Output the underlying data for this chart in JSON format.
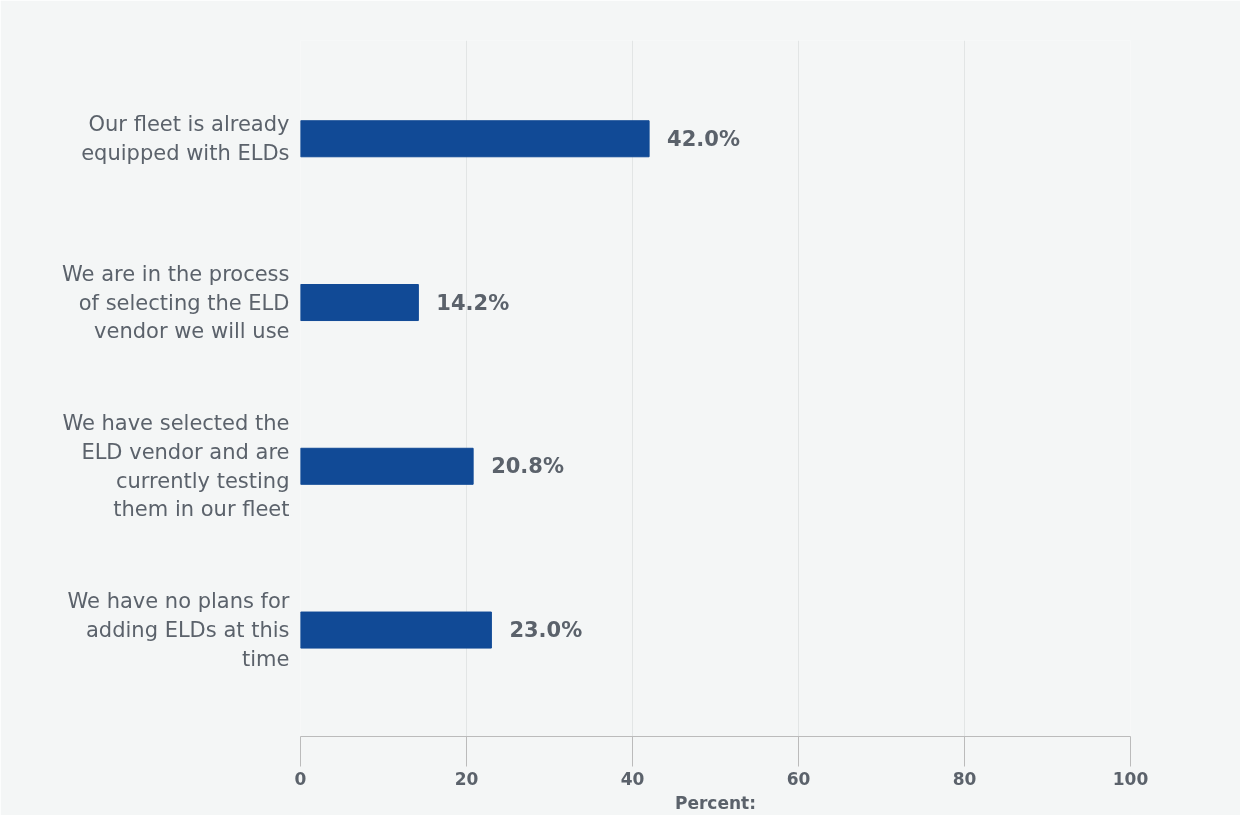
{
  "chart_data": {
    "type": "bar",
    "orientation": "horizontal",
    "categories": [
      "Our fleet is already equipped with ELDs",
      "We are in the process of selecting the ELD vendor we will use",
      "We have selected the ELD vendor and are currently testing them in our fleet",
      "We have no plans for adding ELDs at this time"
    ],
    "values": [
      42.0,
      14.2,
      20.8,
      23.0
    ],
    "value_labels": [
      "42.0%",
      "14.2%",
      "20.8%",
      "23.0%"
    ],
    "color": "#114a96",
    "xlabel": "Percent:",
    "xlim": [
      0,
      100
    ],
    "xticks": [
      0,
      20,
      40,
      60,
      80,
      100
    ],
    "grid": "x"
  }
}
